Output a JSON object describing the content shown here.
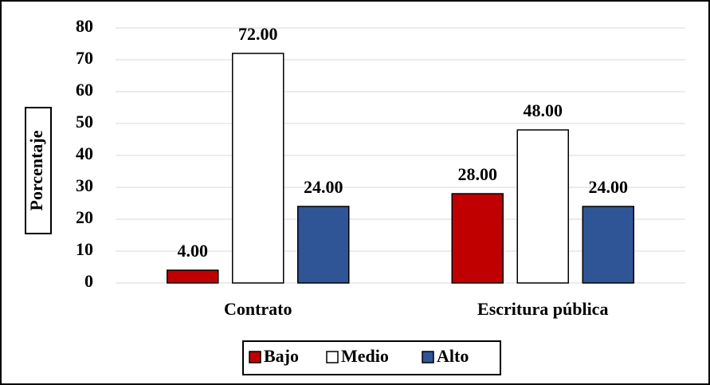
{
  "chart_data": {
    "type": "bar",
    "y_label": "Porcentaje",
    "categories": [
      "Contrato",
      "Escritura pública"
    ],
    "series": [
      {
        "name": "Bajo",
        "color": "#c00000",
        "values": [
          4,
          28
        ],
        "value_labels": [
          "4.00",
          "28.00"
        ]
      },
      {
        "name": "Medio",
        "color": "#ffffff",
        "values": [
          72,
          48
        ],
        "value_labels": [
          "72.00",
          "48.00"
        ]
      },
      {
        "name": "Alto",
        "color": "#2f5597",
        "values": [
          24,
          24
        ],
        "value_labels": [
          "24.00",
          "24.00"
        ]
      }
    ],
    "ylim": [
      0,
      80
    ],
    "yticks": [
      0,
      10,
      20,
      30,
      40,
      50,
      60,
      70,
      80
    ],
    "grid": true,
    "legend": "bottom"
  }
}
